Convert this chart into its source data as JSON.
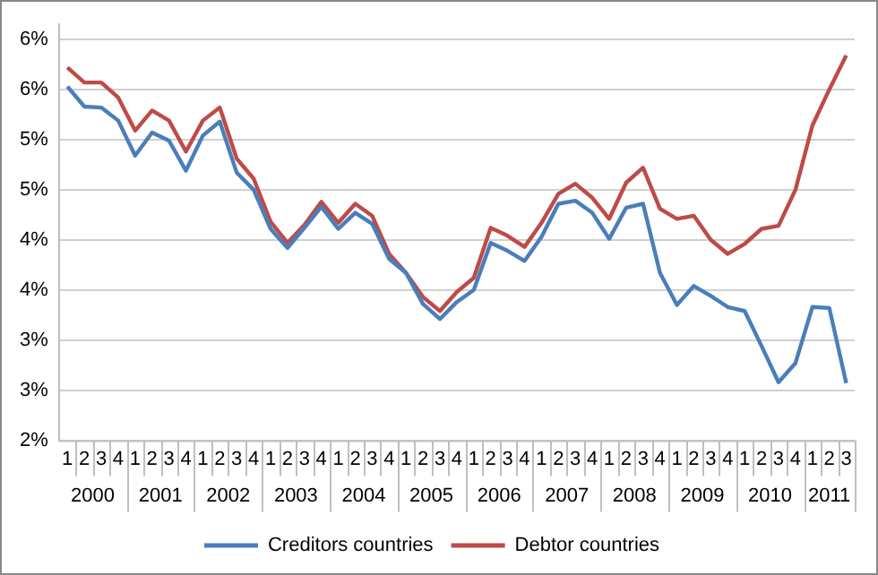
{
  "chart_data": {
    "type": "line",
    "categories": [
      "1",
      "2",
      "3",
      "4",
      "1",
      "2",
      "3",
      "4",
      "1",
      "2",
      "3",
      "4",
      "1",
      "2",
      "3",
      "4",
      "1",
      "2",
      "3",
      "4",
      "1",
      "2",
      "3",
      "4",
      "1",
      "2",
      "3",
      "4",
      "1",
      "2",
      "3",
      "4",
      "1",
      "2",
      "3",
      "4",
      "1",
      "2",
      "3",
      "4",
      "1",
      "2",
      "3",
      "4",
      "1",
      "2",
      "3"
    ],
    "annotations": [
      "2000",
      "2001",
      "2002",
      "2003",
      "2004",
      "2005",
      "2006",
      "2007",
      "2008",
      "2009",
      "2010",
      "2011"
    ],
    "series": [
      {
        "name": "Creditors countries",
        "color": "#4a7ebb",
        "values": [
          5.53,
          5.33,
          5.32,
          5.19,
          4.84,
          5.07,
          4.99,
          4.69,
          5.04,
          5.18,
          4.67,
          4.5,
          4.11,
          3.92,
          4.12,
          4.33,
          4.11,
          4.27,
          4.16,
          3.81,
          3.67,
          3.36,
          3.21,
          3.38,
          3.5,
          3.97,
          3.89,
          3.79,
          4.03,
          4.36,
          4.39,
          4.27,
          4.01,
          4.32,
          4.36,
          3.67,
          3.35,
          3.54,
          3.44,
          3.33,
          3.29,
          2.94,
          2.58,
          2.77,
          3.33,
          3.32,
          2.57
        ]
      },
      {
        "name": "Debtor countries",
        "color": "#be4b48",
        "values": [
          5.72,
          5.57,
          5.57,
          5.42,
          5.09,
          5.29,
          5.19,
          4.88,
          5.19,
          5.32,
          4.81,
          4.61,
          4.18,
          3.97,
          4.15,
          4.38,
          4.17,
          4.36,
          4.24,
          3.86,
          3.67,
          3.43,
          3.29,
          3.48,
          3.62,
          4.12,
          4.04,
          3.93,
          4.17,
          4.46,
          4.56,
          4.42,
          4.21,
          4.57,
          4.72,
          4.31,
          4.21,
          4.24,
          4.0,
          3.86,
          3.96,
          4.11,
          4.14,
          4.5,
          5.14,
          5.5,
          5.84
        ]
      }
    ],
    "ylim": [
      2,
      6.15
    ],
    "yticks": [
      {
        "value": 2,
        "label": "2%"
      },
      {
        "value": 2.5,
        "label": "3%"
      },
      {
        "value": 3,
        "label": "3%"
      },
      {
        "value": 3.5,
        "label": "4%"
      },
      {
        "value": 4,
        "label": "4%"
      },
      {
        "value": 4.5,
        "label": "5%"
      },
      {
        "value": 5,
        "label": "5%"
      },
      {
        "value": 5.5,
        "label": "6%"
      },
      {
        "value": 6,
        "label": "6%"
      }
    ],
    "grid": "y",
    "legend": "bottom",
    "marker": "none",
    "line_style": "solid"
  }
}
